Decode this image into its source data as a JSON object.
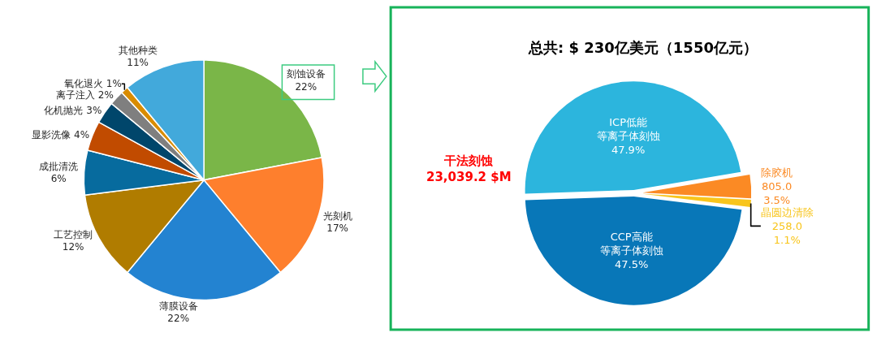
{
  "chart_data": [
    {
      "type": "pie",
      "categories": [
        "刻蚀设备",
        "光刻机",
        "薄膜设备",
        "工艺控制",
        "成批清洗",
        "显影洗像",
        "化机抛光",
        "离子注入",
        "氧化退火",
        "其他种类"
      ],
      "values": [
        22,
        17,
        22,
        12,
        6,
        4,
        3,
        2,
        1,
        11
      ],
      "colors": [
        "#7ab648",
        "#fe7f2d",
        "#2383d1",
        "#b07c00",
        "#076b9e",
        "#c14b00",
        "#00466b",
        "#7f7f7f",
        "#d98c00",
        "#42a9db"
      ],
      "value_labels": [
        "22%",
        "17%",
        "22%",
        "12%",
        "6%",
        "4%",
        "3%",
        "2%",
        "1%",
        "11%"
      ]
    },
    {
      "type": "pie",
      "title": "总共: $ 230亿美元（1550亿元）",
      "categories": [
        "ICP低能等离子体刻蚀",
        "除胶机",
        "晶圆边清除",
        "CCP高能等离子体刻蚀"
      ],
      "values": [
        47.9,
        3.5,
        1.1,
        47.5
      ],
      "colors": [
        "#2cb5dd",
        "#fb8a24",
        "#f8c51c",
        "#0877b8"
      ],
      "value_labels": [
        "47.9%",
        "805.0\n3.5%",
        "258.0\n1.1%",
        "47.5%"
      ],
      "annotations": [
        "干法刻蚀\n23,039.2 $M"
      ]
    }
  ]
}
